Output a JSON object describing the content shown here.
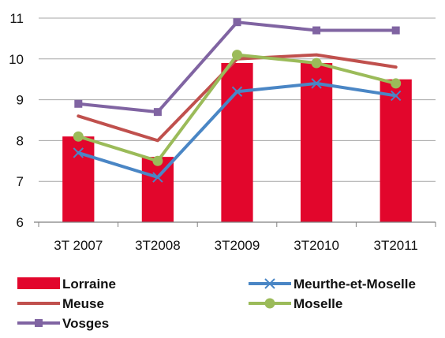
{
  "chart_data": {
    "type": "bar",
    "categories": [
      "3T 2007",
      "3T2008",
      "3T2009",
      "3T2010",
      "3T2011"
    ],
    "ylim": [
      6,
      11
    ],
    "yticks": [
      6,
      7,
      8,
      9,
      10,
      11
    ],
    "grid": true,
    "legend_position": "bottom",
    "series": [
      {
        "name": "Lorraine",
        "kind": "bar",
        "color": "#e2062c",
        "marker": "none",
        "values": [
          8.1,
          7.6,
          9.9,
          9.9,
          9.5
        ]
      },
      {
        "name": "Meurthe-et-Moselle",
        "kind": "line",
        "color": "#4a86c5",
        "marker": "x",
        "values": [
          7.7,
          7.1,
          9.2,
          9.4,
          9.1
        ]
      },
      {
        "name": "Meuse",
        "kind": "line",
        "color": "#c0504d",
        "marker": "none",
        "values": [
          8.6,
          8.0,
          10.0,
          10.1,
          9.8
        ]
      },
      {
        "name": "Moselle",
        "kind": "line",
        "color": "#9bbb59",
        "marker": "circle",
        "values": [
          8.1,
          7.5,
          10.1,
          9.9,
          9.4
        ]
      },
      {
        "name": "Vosges",
        "kind": "line",
        "color": "#8064a2",
        "marker": "square",
        "values": [
          8.9,
          8.7,
          10.9,
          10.7,
          10.7
        ]
      }
    ]
  }
}
